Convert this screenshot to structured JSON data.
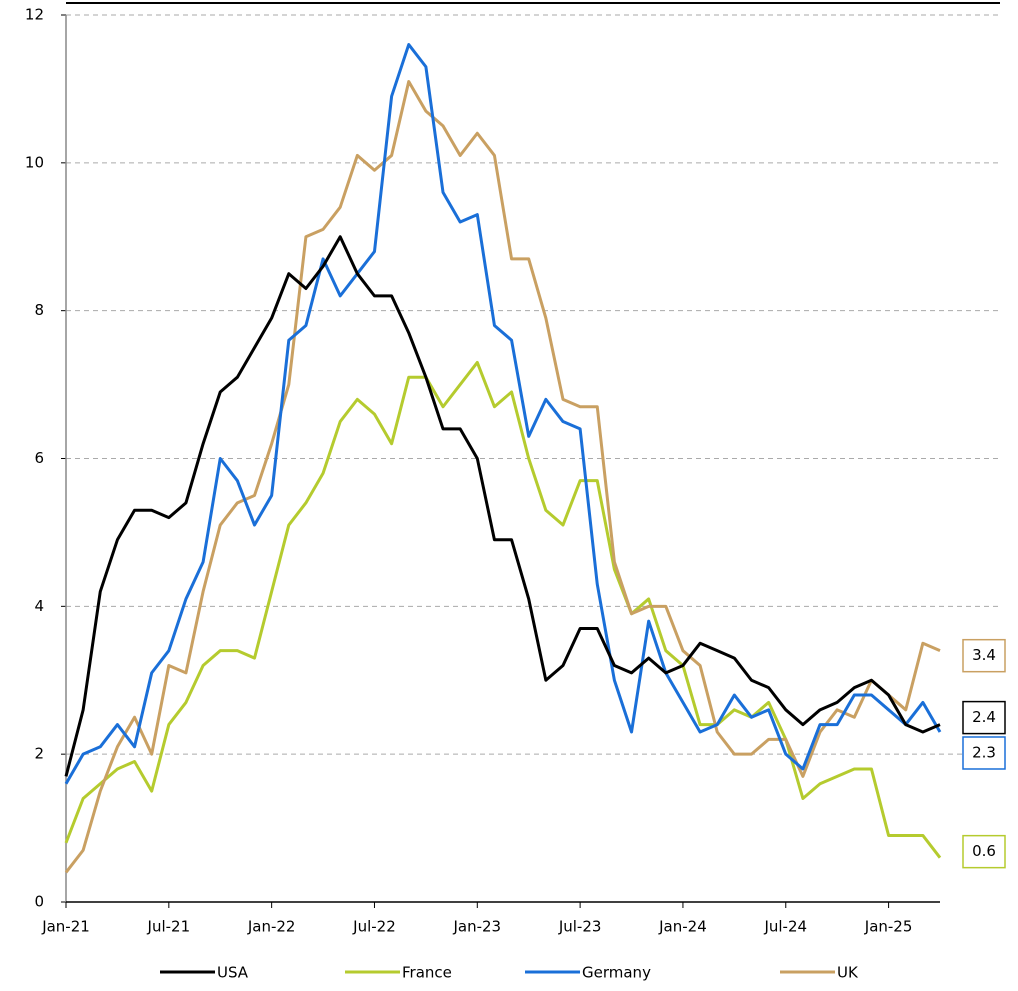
{
  "chart_data": {
    "type": "line",
    "categories": [
      "Jan-21",
      null,
      null,
      null,
      null,
      null,
      "Jul-21",
      null,
      null,
      null,
      null,
      null,
      "Jan-22",
      null,
      null,
      null,
      null,
      null,
      "Jul-22",
      null,
      null,
      null,
      null,
      null,
      "Jan-23",
      null,
      null,
      null,
      null,
      null,
      "Jul-23",
      null,
      null,
      null,
      null,
      null,
      "Jan-24",
      null,
      null,
      null,
      null,
      null,
      "Jul-24",
      null,
      null,
      null,
      null,
      null,
      "Jan-25",
      null,
      null,
      null
    ],
    "series": [
      {
        "name": "USA",
        "color": "#000000",
        "values": [
          1.7,
          2.6,
          4.2,
          4.9,
          5.3,
          5.3,
          5.2,
          5.4,
          6.2,
          6.9,
          7.1,
          7.5,
          7.9,
          8.5,
          8.3,
          8.6,
          9.0,
          8.5,
          8.2,
          8.2,
          7.7,
          7.1,
          6.4,
          6.4,
          6.0,
          4.9,
          4.9,
          4.1,
          3.0,
          3.2,
          3.7,
          3.7,
          3.2,
          3.1,
          3.3,
          3.1,
          3.2,
          3.5,
          3.4,
          3.3,
          3.0,
          2.9,
          2.6,
          2.4,
          2.6,
          2.7,
          2.9,
          3.0,
          2.8,
          2.4,
          2.3,
          2.4
        ]
      },
      {
        "name": "France",
        "color": "#b5cb2e",
        "values": [
          0.8,
          1.4,
          1.6,
          1.8,
          1.9,
          1.5,
          2.4,
          2.7,
          3.2,
          3.4,
          3.4,
          3.3,
          4.2,
          5.1,
          5.4,
          5.8,
          6.5,
          6.8,
          6.6,
          6.2,
          7.1,
          7.1,
          6.7,
          7.0,
          7.3,
          6.7,
          6.9,
          6.0,
          5.3,
          5.1,
          5.7,
          5.7,
          4.5,
          3.9,
          4.1,
          3.4,
          3.2,
          2.4,
          2.4,
          2.6,
          2.5,
          2.7,
          2.2,
          1.4,
          1.6,
          1.7,
          1.8,
          1.8,
          0.9,
          0.9,
          0.9,
          0.6
        ]
      },
      {
        "name": "Germany",
        "color": "#1a6fd8",
        "values": [
          1.6,
          2.0,
          2.1,
          2.4,
          2.1,
          3.1,
          3.4,
          4.1,
          4.6,
          6.0,
          5.7,
          5.1,
          5.5,
          7.6,
          7.8,
          8.7,
          8.2,
          8.5,
          8.8,
          10.9,
          11.6,
          11.3,
          9.6,
          9.2,
          9.3,
          7.8,
          7.6,
          6.3,
          6.8,
          6.5,
          6.4,
          4.3,
          3.0,
          2.3,
          3.8,
          3.1,
          2.7,
          2.3,
          2.4,
          2.8,
          2.5,
          2.6,
          2.0,
          1.8,
          2.4,
          2.4,
          2.8,
          2.8,
          2.6,
          2.4,
          2.7,
          2.3
        ]
      },
      {
        "name": "UK",
        "color": "#c9a062",
        "values": [
          0.4,
          0.7,
          1.5,
          2.1,
          2.5,
          2.0,
          3.2,
          3.1,
          4.2,
          5.1,
          5.4,
          5.5,
          6.2,
          7.0,
          9.0,
          9.1,
          9.4,
          10.1,
          9.9,
          10.1,
          11.1,
          10.7,
          10.5,
          10.1,
          10.4,
          10.1,
          8.7,
          8.7,
          7.9,
          6.8,
          6.7,
          6.7,
          4.6,
          3.9,
          4.0,
          4.0,
          3.4,
          3.2,
          2.3,
          2.0,
          2.0,
          2.2,
          2.2,
          1.7,
          2.3,
          2.6,
          2.5,
          3.0,
          2.8,
          2.6,
          3.5,
          3.4
        ]
      }
    ],
    "ylim": [
      0,
      12
    ],
    "yticks": [
      0,
      2,
      4,
      6,
      8,
      10,
      12
    ],
    "grid": true
  }
}
